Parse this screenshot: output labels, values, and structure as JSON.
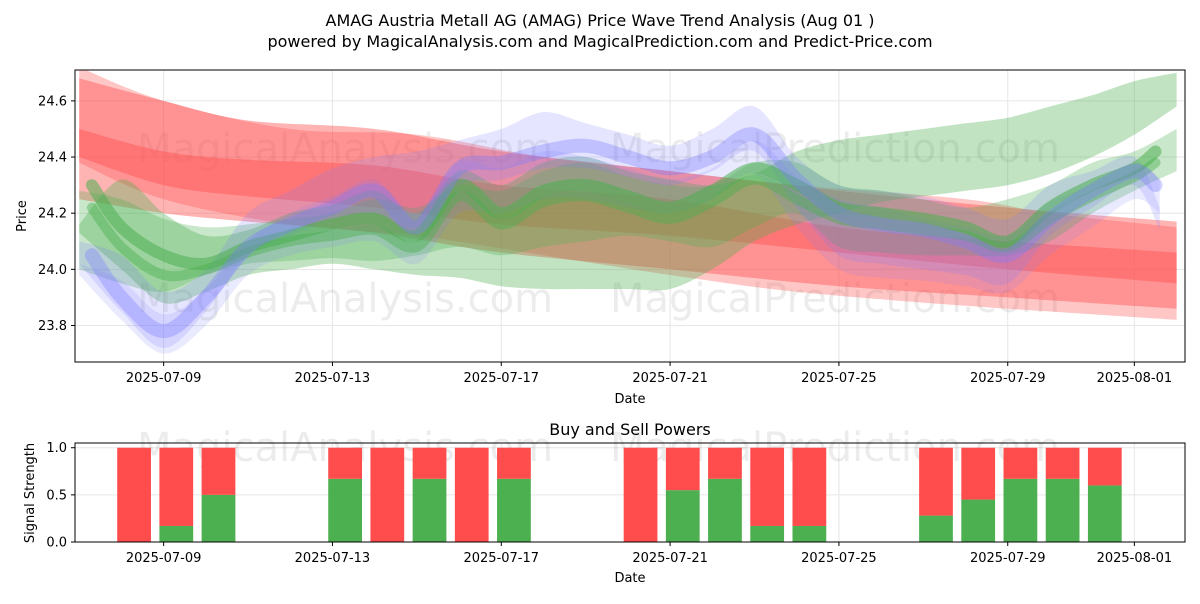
{
  "header": {
    "title": "AMAG Austria Metall AG (AMAG) Price Wave Trend Analysis (Aug 01 )",
    "subtitle": "powered by MagicalAnalysis.com and MagicalPrediction.com and Predict-Price.com"
  },
  "watermarks": [
    "MagicalAnalysis.com",
    "MagicalPrediction.com"
  ],
  "colors": {
    "red": "#ff4d4d",
    "green": "#4caf50",
    "blue": "#7b7bff",
    "grid": "#e6e6e6"
  },
  "chart_data": [
    {
      "type": "area",
      "xlabel": "Date",
      "ylabel": "Price",
      "ylim": [
        23.67,
        24.71
      ],
      "yticks": [
        23.8,
        24.0,
        24.2,
        24.4,
        24.6
      ],
      "xticks": [
        "2025-07-09",
        "2025-07-13",
        "2025-07-17",
        "2025-07-21",
        "2025-07-25",
        "2025-07-29",
        "2025-08-01"
      ],
      "xtick_days": [
        0,
        4,
        8,
        12,
        16,
        20,
        23
      ],
      "xlim_days": [
        -2.1,
        24.2
      ],
      "grid": true,
      "bands": [
        {
          "color": "red",
          "opacity": 0.42,
          "x": [
            -2,
            0,
            2,
            5,
            8,
            12,
            16,
            20,
            24
          ],
          "upper": [
            24.68,
            24.6,
            24.53,
            24.5,
            24.42,
            24.35,
            24.28,
            24.22,
            24.17
          ],
          "lower": [
            24.4,
            24.3,
            24.26,
            24.22,
            24.16,
            24.12,
            24.06,
            24.0,
            23.95
          ]
        },
        {
          "color": "red",
          "opacity": 0.42,
          "x": [
            -2,
            0,
            2,
            5,
            8,
            12,
            16,
            20,
            24
          ],
          "upper": [
            24.5,
            24.42,
            24.39,
            24.37,
            24.3,
            24.25,
            24.15,
            24.1,
            24.06
          ],
          "lower": [
            24.25,
            24.2,
            24.17,
            24.13,
            24.06,
            24.0,
            23.94,
            23.9,
            23.86
          ]
        },
        {
          "color": "red",
          "opacity": 0.32,
          "x": [
            -2,
            0,
            3,
            6,
            9,
            12,
            15,
            19,
            21,
            24
          ],
          "upper": [
            24.72,
            24.6,
            24.5,
            24.48,
            24.4,
            24.35,
            24.3,
            24.25,
            24.2,
            24.15
          ],
          "lower": [
            24.38,
            24.25,
            24.16,
            24.12,
            24.05,
            23.98,
            23.92,
            23.87,
            23.85,
            23.82
          ]
        },
        {
          "color": "green",
          "opacity": 0.35,
          "x": [
            -2,
            -1,
            0,
            1,
            2,
            3,
            4,
            5,
            6,
            7,
            8,
            9,
            10,
            11,
            12,
            13,
            14,
            15,
            16,
            17,
            18,
            19,
            20,
            21,
            22,
            23,
            24
          ],
          "upper": [
            24.16,
            24.32,
            24.2,
            24.12,
            24.14,
            24.2,
            24.23,
            24.28,
            24.2,
            24.35,
            24.3,
            24.38,
            24.4,
            24.35,
            24.32,
            24.3,
            24.34,
            24.42,
            24.46,
            24.48,
            24.5,
            24.52,
            24.54,
            24.58,
            24.62,
            24.67,
            24.7
          ],
          "lower": [
            24.13,
            24.0,
            23.88,
            23.92,
            23.98,
            24.0,
            24.02,
            24.0,
            23.98,
            23.97,
            23.94,
            23.93,
            23.93,
            23.93,
            23.93,
            24.0,
            24.1,
            24.16,
            24.2,
            24.24,
            24.26,
            24.28,
            24.3,
            24.34,
            24.4,
            24.48,
            24.58
          ]
        },
        {
          "color": "green",
          "opacity": 0.3,
          "x": [
            -2,
            -1,
            0,
            1,
            2,
            3,
            4,
            5,
            6,
            7,
            8,
            9,
            10,
            11,
            12,
            13,
            14,
            15,
            16,
            17,
            18,
            19,
            20,
            21,
            22,
            23,
            24
          ],
          "upper": [
            24.28,
            24.25,
            24.18,
            24.15,
            24.16,
            24.18,
            24.2,
            24.25,
            24.22,
            24.3,
            24.28,
            24.35,
            24.38,
            24.33,
            24.3,
            24.3,
            24.38,
            24.38,
            24.3,
            24.28,
            24.25,
            24.22,
            24.25,
            24.3,
            24.38,
            24.42,
            24.5
          ],
          "lower": [
            24.0,
            23.95,
            23.92,
            23.98,
            24.02,
            24.03,
            24.04,
            24.03,
            24.05,
            24.08,
            24.05,
            24.08,
            24.1,
            24.12,
            24.1,
            24.08,
            24.15,
            24.2,
            24.08,
            24.06,
            24.05,
            24.05,
            24.05,
            24.1,
            24.2,
            24.28,
            24.35
          ]
        },
        {
          "color": "blue",
          "opacity": 0.2,
          "x": [
            -2,
            -1,
            0,
            1,
            2,
            3,
            4,
            5,
            6,
            7,
            8,
            9,
            10,
            11,
            12,
            13,
            14,
            15,
            16,
            17,
            18,
            19,
            20,
            21,
            22,
            23,
            23.6
          ],
          "upper": [
            24.1,
            24.05,
            23.92,
            24.0,
            24.2,
            24.28,
            24.36,
            24.4,
            24.42,
            24.46,
            24.5,
            24.56,
            24.52,
            24.48,
            24.44,
            24.5,
            24.58,
            24.4,
            24.3,
            24.28,
            24.26,
            24.22,
            24.18,
            24.3,
            24.35,
            24.4,
            24.22
          ],
          "lower": [
            24.02,
            23.85,
            23.72,
            23.85,
            24.05,
            24.12,
            24.18,
            24.2,
            24.15,
            24.3,
            24.32,
            24.36,
            24.36,
            24.33,
            24.3,
            24.35,
            24.42,
            24.22,
            24.05,
            24.02,
            24.0,
            23.98,
            23.95,
            24.12,
            24.22,
            24.3,
            24.14
          ]
        },
        {
          "color": "blue",
          "opacity": 0.16,
          "x": [
            -2,
            -1,
            0,
            1,
            2,
            3,
            4,
            5,
            6,
            7,
            8,
            9,
            10,
            11,
            12,
            13,
            14,
            15,
            16,
            17,
            18,
            19,
            20,
            21,
            22,
            23,
            23.6
          ],
          "upper": [
            24.02,
            23.96,
            23.84,
            23.93,
            24.1,
            24.2,
            24.26,
            24.32,
            24.2,
            24.38,
            24.36,
            24.42,
            24.4,
            24.36,
            24.32,
            24.36,
            24.46,
            24.33,
            24.25,
            24.22,
            24.18,
            24.15,
            24.12,
            24.24,
            24.3,
            24.38,
            24.32
          ],
          "lower": [
            23.98,
            23.82,
            23.7,
            23.8,
            23.98,
            24.05,
            24.08,
            24.1,
            24.02,
            24.2,
            24.2,
            24.25,
            24.25,
            24.22,
            24.2,
            24.25,
            24.34,
            24.15,
            24.0,
            23.97,
            23.96,
            23.94,
            23.92,
            24.05,
            24.15,
            24.25,
            24.2
          ]
        }
      ],
      "lines": [
        {
          "color": "green",
          "opacity": 0.55,
          "width": 12,
          "x": [
            -1.7,
            -1,
            0,
            1,
            2,
            3,
            4,
            5,
            6,
            7,
            8,
            9,
            10,
            11,
            12,
            13,
            14,
            15,
            16,
            17,
            18,
            19,
            20,
            21,
            22,
            23,
            23.5
          ],
          "y": [
            24.3,
            24.15,
            24.05,
            24.02,
            24.08,
            24.12,
            24.16,
            24.18,
            24.12,
            24.3,
            24.2,
            24.28,
            24.3,
            24.26,
            24.22,
            24.28,
            24.36,
            24.3,
            24.22,
            24.2,
            24.18,
            24.15,
            24.1,
            24.22,
            24.3,
            24.36,
            24.42
          ]
        },
        {
          "color": "green",
          "opacity": 0.45,
          "width": 10,
          "x": [
            -1.7,
            -1,
            0,
            1,
            2,
            3,
            4,
            5,
            6,
            7,
            8,
            9,
            10,
            11,
            12,
            13,
            14,
            15,
            16,
            17,
            18,
            19,
            20,
            21,
            22,
            23,
            23.5
          ],
          "y": [
            24.22,
            24.08,
            23.98,
            24.0,
            24.06,
            24.1,
            24.12,
            24.14,
            24.08,
            24.26,
            24.16,
            24.24,
            24.26,
            24.22,
            24.18,
            24.24,
            24.32,
            24.25,
            24.18,
            24.16,
            24.14,
            24.12,
            24.08,
            24.18,
            24.26,
            24.33,
            24.38
          ]
        },
        {
          "color": "blue",
          "opacity": 0.35,
          "width": 14,
          "x": [
            -1.7,
            -1,
            0,
            1,
            2,
            3,
            4,
            5,
            6,
            7,
            8,
            9,
            10,
            11,
            12,
            13,
            14,
            15,
            16,
            17,
            18,
            19,
            20,
            21,
            22,
            23,
            23.5
          ],
          "y": [
            24.05,
            23.9,
            23.78,
            23.9,
            24.08,
            24.16,
            24.22,
            24.28,
            24.15,
            24.36,
            24.38,
            24.42,
            24.44,
            24.4,
            24.36,
            24.4,
            24.48,
            24.32,
            24.2,
            24.16,
            24.14,
            24.1,
            24.05,
            24.18,
            24.28,
            24.35,
            24.3
          ]
        }
      ]
    },
    {
      "type": "bar",
      "title": "Buy and Sell Powers",
      "xlabel": "Date",
      "ylabel": "Signal Strength",
      "ylim": [
        0,
        1.05
      ],
      "yticks": [
        0.0,
        0.5,
        1.0
      ],
      "xticks": [
        "2025-07-09",
        "2025-07-13",
        "2025-07-17",
        "2025-07-21",
        "2025-07-25",
        "2025-07-29",
        "2025-08-01"
      ],
      "xtick_days": [
        0,
        4,
        8,
        12,
        16,
        20,
        23
      ],
      "xlim_days": [
        -2.1,
        24.2
      ],
      "grid": true,
      "day": [
        -0.7,
        0.3,
        1.3,
        4.3,
        5.3,
        6.3,
        7.3,
        8.3,
        11.3,
        12.3,
        13.3,
        14.3,
        15.3,
        18.3,
        19.3,
        20.3,
        21.3,
        22.3
      ],
      "buy": [
        0.0,
        0.17,
        0.5,
        0.67,
        0.0,
        0.67,
        0.0,
        0.67,
        0.0,
        0.55,
        0.67,
        0.17,
        0.17,
        0.28,
        0.45,
        0.67,
        0.67,
        0.6
      ],
      "total": [
        1,
        1,
        1,
        1,
        1,
        1,
        1,
        1,
        1,
        1,
        1,
        1,
        1,
        1,
        1,
        1,
        1,
        1
      ]
    }
  ]
}
